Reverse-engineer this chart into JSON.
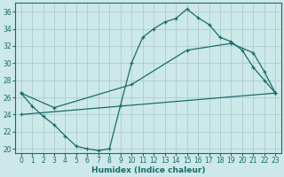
{
  "xlabel": "Humidex (Indice chaleur)",
  "bg_color": "#cde8e8",
  "grid_color": "#b0d0d0",
  "line_color": "#1a6b6b",
  "ylim": [
    19.5,
    37.0
  ],
  "xlim": [
    -0.5,
    23.5
  ],
  "yticks": [
    20,
    22,
    24,
    26,
    28,
    30,
    32,
    34,
    36
  ],
  "xticks": [
    0,
    1,
    2,
    3,
    4,
    5,
    6,
    7,
    8,
    9,
    10,
    11,
    12,
    13,
    14,
    15,
    16,
    17,
    18,
    19,
    20,
    21,
    22,
    23
  ],
  "line1_x": [
    0,
    1,
    2,
    3,
    4,
    5,
    6,
    7,
    8,
    9,
    10,
    11,
    12,
    13,
    14,
    15,
    16,
    17,
    18,
    19,
    20,
    21,
    22,
    23
  ],
  "line1_y": [
    26.5,
    25.0,
    23.8,
    22.8,
    21.5,
    20.3,
    20.0,
    19.8,
    20.0,
    25.1,
    30.0,
    33.0,
    34.0,
    34.8,
    35.2,
    36.3,
    35.3,
    34.5,
    33.0,
    32.5,
    31.5,
    29.5,
    28.0,
    26.5
  ],
  "line2_x": [
    0,
    3,
    10,
    15,
    19,
    21,
    22,
    23
  ],
  "line2_y": [
    26.5,
    24.8,
    27.5,
    31.5,
    32.3,
    31.2,
    29.0,
    26.5
  ],
  "line3_x": [
    0,
    23
  ],
  "line3_y": [
    24.0,
    26.5
  ]
}
